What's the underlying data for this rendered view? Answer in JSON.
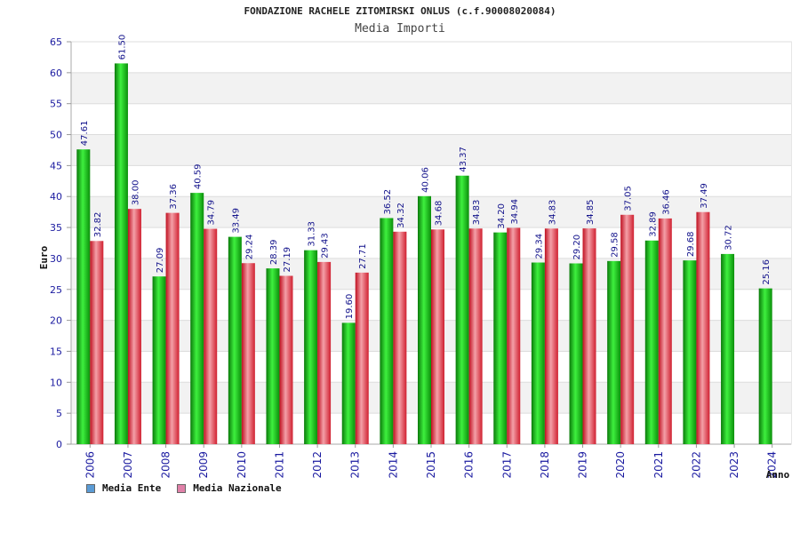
{
  "header": {
    "title": "FONDAZIONE RACHELE ZITOMIRSKI ONLUS (c.f.90008020084)",
    "subtitle": "Media Importi"
  },
  "legend": {
    "items": [
      {
        "label": "Media Ente",
        "color": "#5b9bd5"
      },
      {
        "label": "Media Nazionale",
        "color": "#e080a8"
      }
    ]
  },
  "chart_data": {
    "type": "bar",
    "title": "FONDAZIONE RACHELE ZITOMIRSKI ONLUS (c.f.90008020084)",
    "subtitle": "Media Importi",
    "xlabel": "Anno",
    "ylabel": "Euro",
    "ylim": [
      0,
      65
    ],
    "yticks": [
      0,
      5,
      10,
      15,
      20,
      25,
      30,
      35,
      40,
      45,
      50,
      55,
      60,
      65
    ],
    "grid": true,
    "legend_position": "bottom-left",
    "categories": [
      "2006",
      "2007",
      "2008",
      "2009",
      "2010",
      "2011",
      "2012",
      "2013",
      "2014",
      "2015",
      "2016",
      "2017",
      "2018",
      "2019",
      "2020",
      "2021",
      "2022",
      "2023",
      "2024"
    ],
    "series": [
      {
        "name": "Media Ente",
        "color": "#12b812",
        "values": [
          47.61,
          61.5,
          27.09,
          40.59,
          33.49,
          28.39,
          31.33,
          19.6,
          36.52,
          40.06,
          43.37,
          34.2,
          29.34,
          29.2,
          29.58,
          32.89,
          29.68,
          30.72,
          25.16
        ],
        "labels": [
          "47.61",
          "61.50",
          "27.09",
          "40.59",
          "33.49",
          "28.39",
          "31.33",
          "19.60",
          "36.52",
          "40.06",
          "43.37",
          "34.20",
          "29.34",
          "29.20",
          "29.58",
          "32.89",
          "29.68",
          "30.72",
          "25.16"
        ]
      },
      {
        "name": "Media Nazionale",
        "color": "#e0303a",
        "values": [
          32.82,
          38.0,
          37.36,
          34.79,
          29.24,
          27.19,
          29.43,
          27.71,
          34.32,
          34.68,
          34.83,
          34.94,
          34.83,
          34.85,
          37.05,
          36.46,
          37.49,
          null,
          null
        ],
        "labels": [
          "32.82",
          "38.00",
          "37.36",
          "34.79",
          "29.24",
          "27.19",
          "29.43",
          "27.71",
          "34.32",
          "34.68",
          "34.83",
          "34.94",
          "34.83",
          "34.85",
          "37.05",
          "36.46",
          "37.49",
          null,
          null
        ]
      }
    ]
  }
}
